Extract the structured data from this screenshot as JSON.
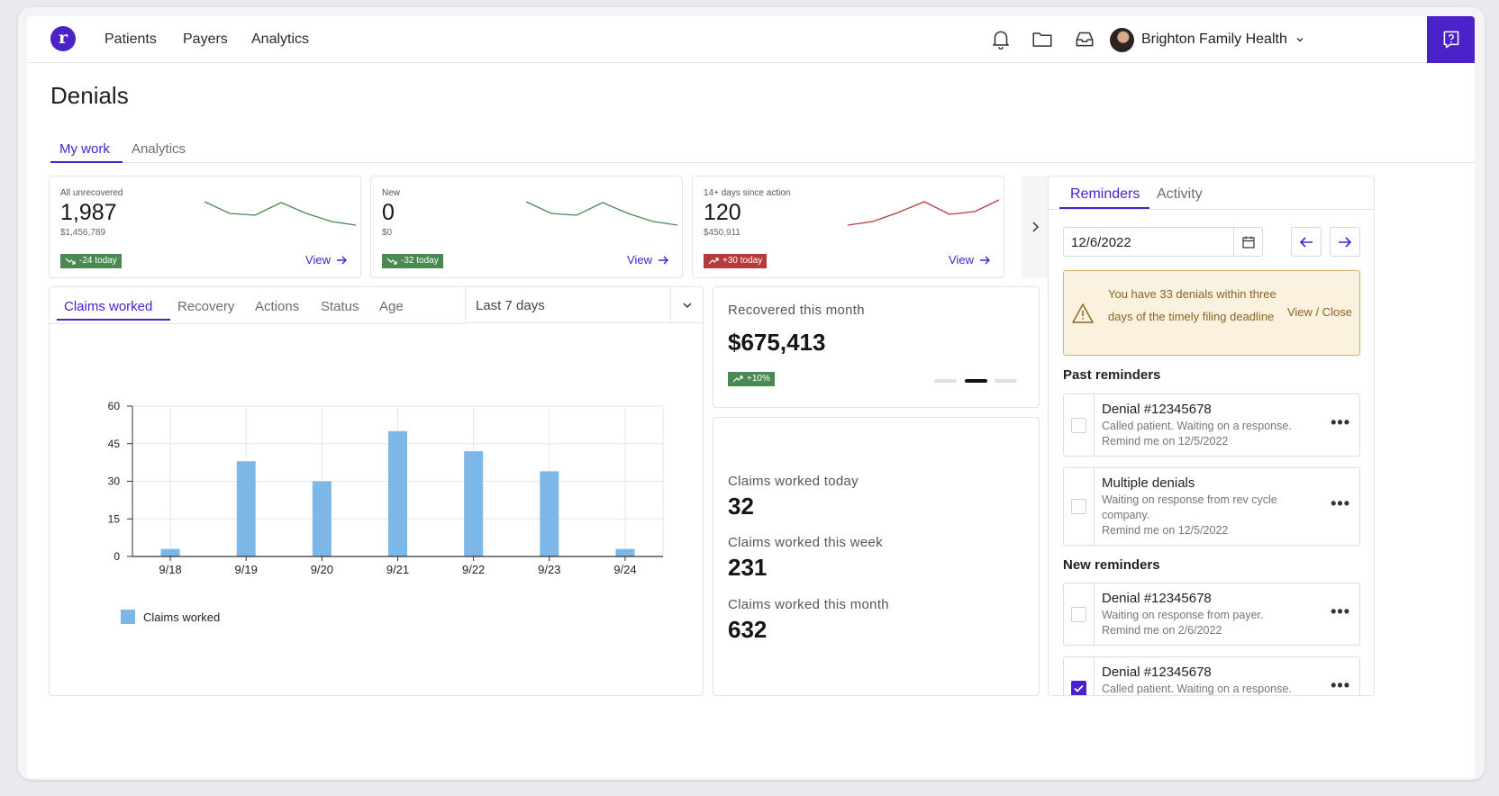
{
  "nav": {
    "links": [
      "Patients",
      "Payers",
      "Analytics"
    ],
    "org_name": "Brighton Family Health",
    "icons": [
      "bell-icon",
      "folder-icon",
      "inbox-icon",
      "help-icon"
    ]
  },
  "page": {
    "title": "Denials",
    "tabs": [
      "My work",
      "Analytics"
    ]
  },
  "stats": [
    {
      "label": "All unrecovered",
      "value": "1,987",
      "sub": "$1,456,789",
      "badge": "-24 today",
      "trend": "down",
      "view": "View"
    },
    {
      "label": "New",
      "value": "0",
      "sub": "$0",
      "badge": "-32 today",
      "trend": "down",
      "view": "View"
    },
    {
      "label": "14+ days since action",
      "value": "120",
      "sub": "$450,911",
      "badge": "+30 today",
      "trend": "up",
      "view": "View"
    }
  ],
  "colors": {
    "accent": "#4b22c9",
    "bar": "#7db7e8",
    "badge_green": "#4a8a52",
    "badge_red": "#b73a3a",
    "spark_green": "#4a8a52",
    "spark_red": "#b73a3a"
  },
  "chart_panel": {
    "tabs": [
      "Claims worked",
      "Recovery",
      "Actions",
      "Status",
      "Age"
    ],
    "range": "Last 7 days"
  },
  "chart_data": {
    "type": "bar",
    "categories": [
      "9/18",
      "9/19",
      "9/20",
      "9/21",
      "9/22",
      "9/23",
      "9/24"
    ],
    "series": [
      {
        "name": "Claims worked",
        "values": [
          3,
          38,
          30,
          50,
          42,
          34,
          3
        ]
      }
    ],
    "ylim": [
      0,
      60
    ],
    "yticks": [
      0,
      15,
      30,
      45,
      60
    ],
    "grid": true,
    "legend": "bottom-left"
  },
  "recovered": {
    "label": "Recovered this month",
    "value": "$675,413",
    "badge": "+10%"
  },
  "claims_metrics": [
    {
      "label": "Claims worked today",
      "value": "32"
    },
    {
      "label": "Claims worked this week",
      "value": "231"
    },
    {
      "label": "Claims worked this month",
      "value": "632"
    }
  ],
  "reminders": {
    "tabs": [
      "Reminders",
      "Activity"
    ],
    "date": "12/6/2022",
    "alert_text": "You have 33 denials within three days of the timely filing deadline",
    "alert_action": "View / Close",
    "past_heading": "Past reminders",
    "new_heading": "New reminders",
    "past": [
      {
        "title": "Denial #12345678",
        "body": "Called patient. Waiting on a response.",
        "remind": "Remind me on 12/5/2022"
      },
      {
        "title": "Multiple denials",
        "body": "Waiting on response from rev cycle company.",
        "remind": "Remind me on 12/5/2022"
      }
    ],
    "new": [
      {
        "title": "Denial #12345678",
        "body": "Waiting on response from payer.",
        "remind": "Remind me on 2/6/2022"
      },
      {
        "title": "Denial #12345678",
        "body": "Called patient. Waiting on a response.",
        "remind": ""
      }
    ]
  }
}
